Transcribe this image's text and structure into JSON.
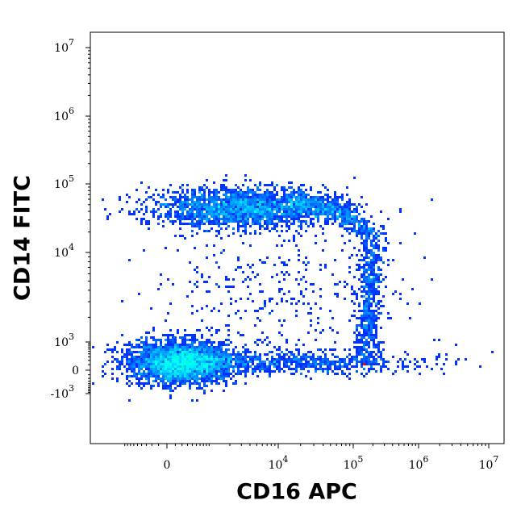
{
  "chart_data": {
    "type": "scatter",
    "style": "density pseudocolor",
    "xlabel": "CD16 APC",
    "ylabel": "CD14 FITC",
    "x_scale": "biexponential",
    "y_scale": "biexponential",
    "xlim": [
      -2000,
      10000000
    ],
    "ylim": [
      -5000,
      10000000
    ],
    "x_ticks": [
      {
        "value": 0,
        "base": "0",
        "exp": ""
      },
      {
        "value": 10000,
        "base": "10",
        "exp": "4"
      },
      {
        "value": 100000,
        "base": "10",
        "exp": "5"
      },
      {
        "value": 1000000,
        "base": "10",
        "exp": "6"
      },
      {
        "value": 10000000,
        "base": "10",
        "exp": "7"
      }
    ],
    "y_ticks": [
      {
        "value": -1000,
        "base": "-10",
        "exp": "3"
      },
      {
        "value": 0,
        "base": "0",
        "exp": ""
      },
      {
        "value": 1000,
        "base": "10",
        "exp": "3"
      },
      {
        "value": 10000,
        "base": "10",
        "exp": "4"
      },
      {
        "value": 100000,
        "base": "10",
        "exp": "5"
      },
      {
        "value": 1000000,
        "base": "10",
        "exp": "6"
      },
      {
        "value": 10000000,
        "base": "10",
        "exp": "7"
      }
    ],
    "populations": [
      {
        "x": 200,
        "y": 150,
        "weight": 0.36
      },
      {
        "x": 3000,
        "y": 45000,
        "weight": 0.26
      },
      {
        "x": 150000,
        "y": 100,
        "weight": 0.12
      },
      {
        "x": 60000,
        "y": 30000,
        "weight": 0.14
      },
      {
        "x": 20000,
        "y": 150,
        "weight": 0.08
      },
      {
        "x": 10000,
        "y": 4000,
        "weight": 0.04
      }
    ],
    "colormap": [
      "#0000ff",
      "#00ffff",
      "#00ff00",
      "#ffff00",
      "#ff0000"
    ],
    "grid": false,
    "legend": "none"
  }
}
